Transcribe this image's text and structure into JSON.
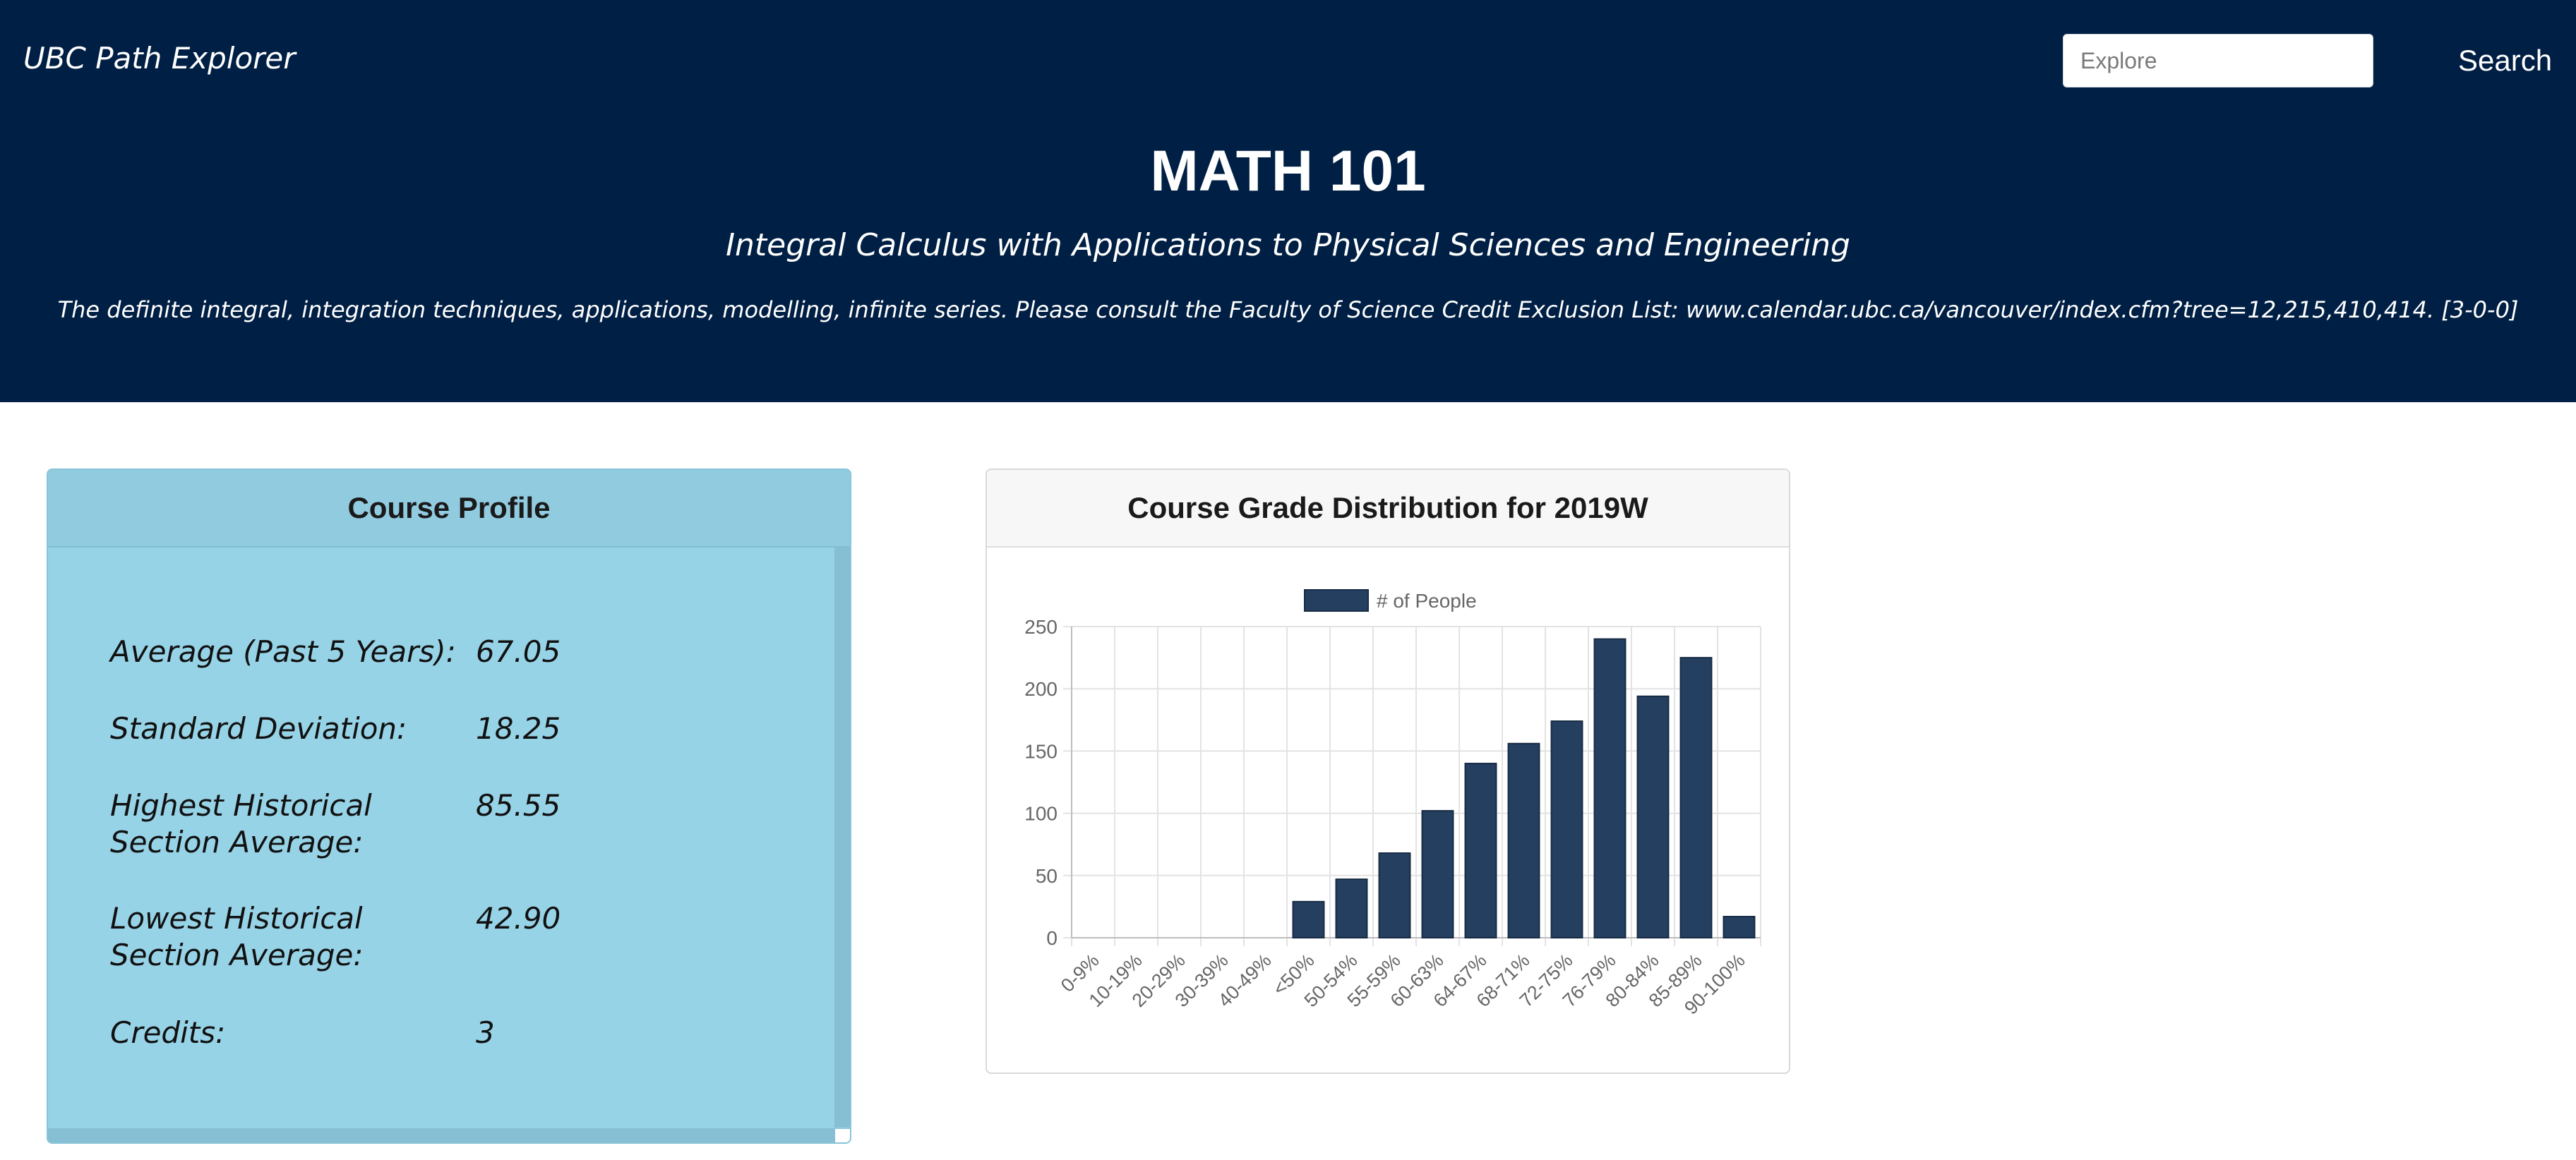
{
  "header": {
    "brand": "UBC Path Explorer",
    "search_placeholder": "Explore",
    "search_button_label": "Search",
    "course_code": "MATH 101",
    "course_title": "Integral Calculus with Applications to Physical Sciences and Engineering",
    "course_description": "The definite integral, integration techniques, applications, modelling, infinite series. Please consult the Faculty of Science Credit Exclusion List: www.calendar.ubc.ca/vancouver/index.cfm?tree=12,215,410,414. [3-0-0]"
  },
  "profile": {
    "title": "Course Profile",
    "stats": [
      {
        "label": "Average (Past 5 Years):",
        "value": "67.05"
      },
      {
        "label": "Standard Deviation:",
        "value": "18.25"
      },
      {
        "label": "Highest Historical Section Average:",
        "value": "85.55"
      },
      {
        "label": "Lowest Historical Section Average:",
        "value": "42.90"
      },
      {
        "label": "Credits:",
        "value": "3"
      }
    ]
  },
  "chart_card": {
    "title": "Course Grade Distribution for 2019W"
  },
  "colors": {
    "header_bg": "#001f44",
    "profile_bg": "#97d3e7",
    "bar_fill": "#243f5f",
    "bar_stroke": "#172b44"
  },
  "chart_data": {
    "type": "bar",
    "title": "",
    "legend": {
      "entries": [
        "# of People"
      ],
      "position": "top"
    },
    "categories": [
      "0-9%",
      "10-19%",
      "20-29%",
      "30-39%",
      "40-49%",
      "<50%",
      "50-54%",
      "55-59%",
      "60-63%",
      "64-67%",
      "68-71%",
      "72-75%",
      "76-79%",
      "80-84%",
      "85-89%",
      "90-100%"
    ],
    "series": [
      {
        "name": "# of People",
        "values": [
          0,
          0,
          0,
          0,
          0,
          29,
          47,
          68,
          102,
          140,
          156,
          174,
          240,
          194,
          225,
          17
        ]
      }
    ],
    "ylim": [
      0,
      250
    ],
    "yticks": [
      0,
      50,
      100,
      150,
      200,
      250
    ],
    "grid": true,
    "xlabel": "",
    "ylabel": ""
  }
}
